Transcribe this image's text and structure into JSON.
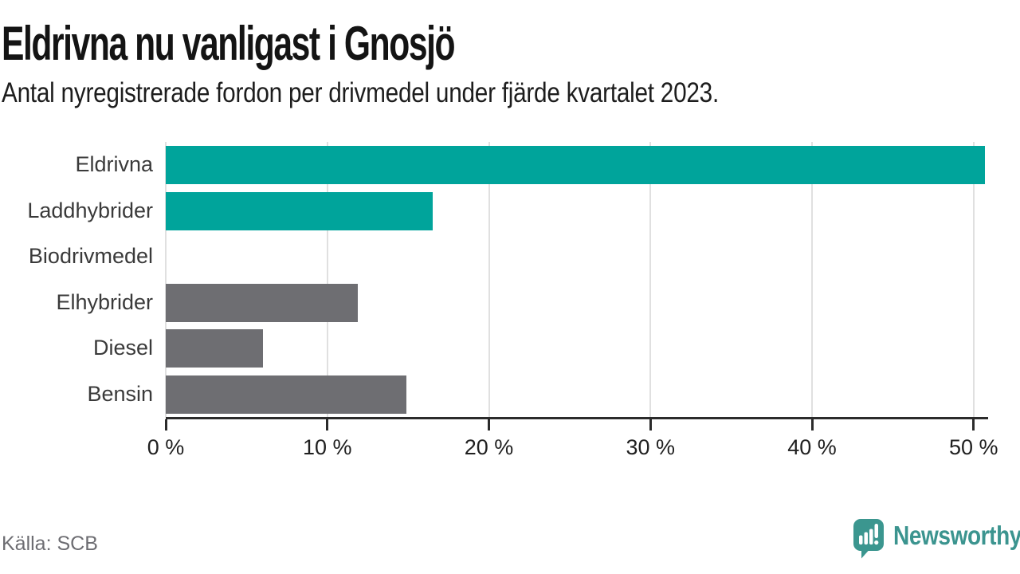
{
  "header": {
    "title": "Eldrivna nu vanligast i Gnosjö",
    "subtitle": "Antal nyregistrerade fordon per drivmedel under fjärde kvartalet 2023."
  },
  "chart_data": {
    "type": "bar",
    "orientation": "horizontal",
    "title": "Eldrivna nu vanligast i Gnosjö",
    "subtitle": "Antal nyregistrerade fordon per drivmedel under fjärde kvartalet 2023.",
    "categories": [
      "Eldrivna",
      "Laddhybrider",
      "Biodrivmedel",
      "Elhybrider",
      "Diesel",
      "Bensin"
    ],
    "values": [
      50.7,
      16.5,
      0,
      11.9,
      6.0,
      14.9
    ],
    "unit": "%",
    "bar_colors": [
      "#00a49b",
      "#00a49b",
      "#6e6e72",
      "#6e6e72",
      "#6e6e72",
      "#6e6e72"
    ],
    "xlim": [
      0,
      50.9
    ],
    "x_ticks": [
      {
        "value": 0,
        "label": "0 %"
      },
      {
        "value": 10,
        "label": "10 %"
      },
      {
        "value": 20,
        "label": "20 %"
      },
      {
        "value": 30,
        "label": "30 %"
      },
      {
        "value": 40,
        "label": "40 %"
      },
      {
        "value": 50,
        "label": "50 %"
      }
    ],
    "grid": true,
    "legend": false
  },
  "footer": {
    "source": "Källa: SCB",
    "brand": {
      "name": "Newsworthy",
      "icon": "newsworthy-bubble-barchart-icon",
      "color": "#3b948f"
    }
  },
  "colors": {
    "bar_teal": "#00a49b",
    "bar_gray": "#6e6e72",
    "grid": "#e0e0e0",
    "axis": "#2b2b2b",
    "title_text": "#141414",
    "label_text": "#3a3a3a",
    "muted_text": "#6d6d72",
    "brand_teal": "#3b948f"
  }
}
